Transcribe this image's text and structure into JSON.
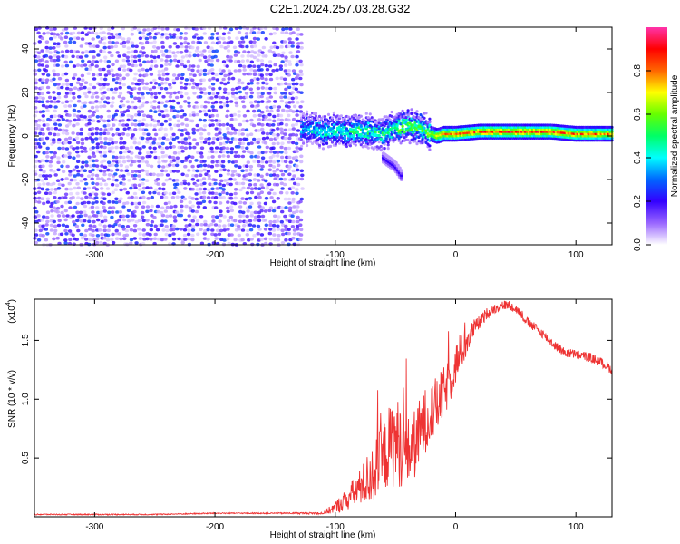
{
  "title": "C2E1.2024.257.03.28.G32",
  "chart_data": [
    {
      "type": "heatmap",
      "title": "C2E1.2024.257.03.28.G32",
      "xlabel": "Height of straight line (km)",
      "ylabel": "Frequency (Hz)",
      "xlim": [
        -350,
        130
      ],
      "ylim": [
        -50,
        50
      ],
      "x_ticks": [
        -300,
        -200,
        -100,
        0,
        100
      ],
      "y_ticks": [
        -40,
        -20,
        0,
        20,
        40
      ],
      "grid": false,
      "noise_region": {
        "x": [
          -350,
          -128
        ],
        "y": [
          -50,
          50
        ],
        "amplitude_range": [
          0.0,
          0.25
        ]
      },
      "signal_ridge": {
        "x": [
          -128,
          -120,
          -110,
          -100,
          -90,
          -80,
          -70,
          -60,
          -50,
          -40,
          -30,
          -25,
          -20,
          -15,
          -10,
          0,
          20,
          40,
          60,
          80,
          100,
          130
        ],
        "frequency": [
          3,
          4,
          2,
          3,
          2,
          3,
          2,
          1,
          4,
          5,
          4,
          3,
          1,
          0,
          1,
          1,
          2,
          2,
          2,
          2,
          1,
          1
        ],
        "amplitude": [
          0.4,
          0.45,
          0.5,
          0.5,
          0.5,
          0.55,
          0.55,
          0.55,
          0.6,
          0.65,
          0.6,
          0.6,
          0.7,
          0.8,
          0.85,
          0.88,
          0.9,
          0.92,
          0.92,
          0.9,
          0.88,
          0.85
        ]
      },
      "secondary_track": {
        "x": [
          -60,
          -50,
          -45
        ],
        "frequency": [
          -10,
          -14,
          -18
        ],
        "amplitude": 0.2
      },
      "colorbar": {
        "label": "Normalized spectral amplitude",
        "ticks": [
          0.0,
          0.2,
          0.4,
          0.6,
          0.8
        ],
        "range": [
          0,
          1
        ],
        "colors": [
          "#ffffff",
          "#9966ff",
          "#3300ff",
          "#0066ff",
          "#00ffff",
          "#00ff66",
          "#66ff00",
          "#ffff00",
          "#ff6600",
          "#ff0000",
          "#ff33aa"
        ]
      }
    },
    {
      "type": "line",
      "xlabel": "Height of straight line (km)",
      "ylabel": "SNR (10 * v/v)",
      "scale_label": "(x10",
      "scale_exponent": "4",
      "xlim": [
        -350,
        130
      ],
      "ylim": [
        0,
        1.85
      ],
      "x_ticks": [
        -300,
        -200,
        -100,
        0,
        100
      ],
      "y_ticks": [
        0.5,
        1.0,
        1.5
      ],
      "grid": false,
      "series": [
        {
          "color": "#ee3333",
          "x": [
            -350,
            -300,
            -250,
            -200,
            -150,
            -110,
            -100,
            -90,
            -80,
            -70,
            -60,
            -55,
            -50,
            -45,
            -40,
            -35,
            -30,
            -25,
            -20,
            -15,
            -10,
            -5,
            0,
            5,
            10,
            15,
            20,
            25,
            30,
            35,
            40,
            45,
            50,
            55,
            60,
            70,
            80,
            90,
            100,
            110,
            120,
            130
          ],
          "y": [
            0.02,
            0.02,
            0.02,
            0.03,
            0.03,
            0.03,
            0.08,
            0.15,
            0.25,
            0.35,
            0.5,
            0.6,
            0.65,
            0.6,
            0.55,
            0.6,
            0.7,
            0.82,
            0.9,
            0.95,
            1.05,
            1.15,
            1.3,
            1.4,
            1.5,
            1.6,
            1.65,
            1.72,
            1.76,
            1.78,
            1.8,
            1.8,
            1.77,
            1.72,
            1.65,
            1.58,
            1.48,
            1.4,
            1.38,
            1.36,
            1.32,
            1.25
          ],
          "spread": [
            0.005,
            0.005,
            0.005,
            0.005,
            0.005,
            0.01,
            0.05,
            0.1,
            0.15,
            0.25,
            0.3,
            0.35,
            0.4,
            0.35,
            0.3,
            0.3,
            0.3,
            0.28,
            0.25,
            0.25,
            0.22,
            0.2,
            0.18,
            0.15,
            0.12,
            0.08,
            0.06,
            0.05,
            0.04,
            0.04,
            0.04,
            0.04,
            0.04,
            0.04,
            0.04,
            0.04,
            0.04,
            0.04,
            0.04,
            0.04,
            0.04,
            0.04
          ]
        }
      ]
    }
  ]
}
